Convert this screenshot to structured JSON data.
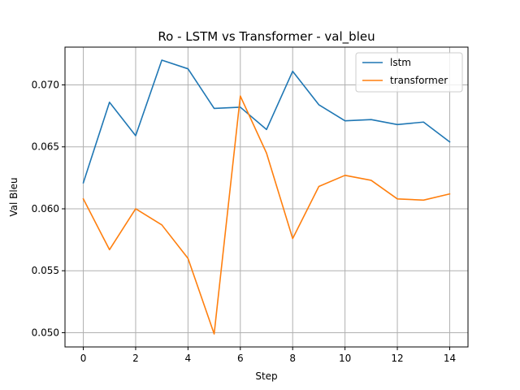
{
  "chart_data": {
    "type": "line",
    "title": "Ro - LSTM vs Transformer - val_bleu",
    "xlabel": "Step",
    "ylabel": "Val Bleu",
    "x": [
      0,
      1,
      2,
      3,
      4,
      5,
      6,
      7,
      8,
      9,
      10,
      11,
      12,
      13,
      14
    ],
    "xlim": [
      -0.7,
      14.7
    ],
    "ylim": [
      0.04885,
      0.07305
    ],
    "xticks": [
      0,
      2,
      4,
      6,
      8,
      10,
      12,
      14
    ],
    "yticks": [
      0.05,
      0.055,
      0.06,
      0.065,
      0.07
    ],
    "ytick_labels": [
      "0.050",
      "0.055",
      "0.060",
      "0.065",
      "0.070"
    ],
    "grid": true,
    "legend_position": "top-right",
    "series": [
      {
        "name": "lstm",
        "color": "#1f77b4",
        "values": [
          0.0621,
          0.0686,
          0.0659,
          0.072,
          0.0713,
          0.0681,
          0.0682,
          0.0664,
          0.0711,
          0.0684,
          0.0671,
          0.0672,
          0.0668,
          0.067,
          0.0654
        ]
      },
      {
        "name": "transformer",
        "color": "#ff7f0e",
        "values": [
          0.0608,
          0.0567,
          0.06,
          0.0587,
          0.056,
          0.0499,
          0.0691,
          0.0645,
          0.0576,
          0.0618,
          0.0627,
          0.0623,
          0.0608,
          0.0607,
          0.0612
        ]
      }
    ]
  }
}
